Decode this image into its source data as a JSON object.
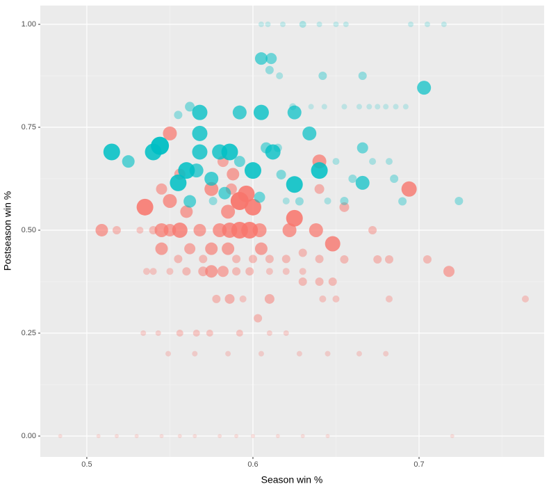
{
  "chart_data": {
    "type": "scatter",
    "x_label": "Season win %",
    "y_label": "Postseason win %",
    "xlim": [
      0.472,
      0.7753
    ],
    "ylim": [
      -0.0507,
      1.0456
    ],
    "xticks": [
      0.5,
      0.6,
      0.7
    ],
    "yticks": [
      {
        "value": 0,
        "label": "0.00"
      },
      {
        "value": 0.25,
        "label": "0.25"
      },
      {
        "value": 0.5,
        "label": "0.50"
      },
      {
        "value": 0.75,
        "label": "0.75"
      },
      {
        "value": 1,
        "label": "1.00"
      }
    ],
    "grid": true,
    "minor_grid": true,
    "background": "#ebebeb",
    "series": [
      {
        "color": "#f8766d",
        "x": [
          0.509,
          0.518,
          0.532,
          0.535,
          0.54,
          0.545,
          0.545,
          0.55,
          0.556,
          0.55,
          0.55,
          0.556,
          0.545,
          0.56,
          0.562,
          0.568,
          0.575,
          0.58,
          0.586,
          0.592,
          0.598,
          0.604,
          0.605,
          0.585,
          0.592,
          0.596,
          0.6,
          0.585,
          0.587,
          0.575,
          0.582,
          0.588,
          0.625,
          0.622,
          0.638,
          0.648,
          0.64,
          0.64,
          0.655,
          0.694,
          0.672,
          0.675,
          0.682,
          0.705,
          0.718,
          0.764,
          0.682,
          0.642,
          0.65,
          0.61,
          0.586,
          0.578,
          0.594,
          0.575,
          0.57,
          0.582,
          0.59,
          0.598,
          0.56,
          0.55,
          0.54,
          0.536,
          0.61,
          0.62,
          0.63,
          0.64,
          0.648,
          0.63,
          0.655,
          0.63,
          0.59,
          0.6,
          0.61,
          0.62,
          0.64,
          0.57,
          0.555,
          0.603,
          0.534,
          0.543,
          0.556,
          0.566,
          0.574,
          0.592,
          0.61,
          0.62,
          0.549,
          0.565,
          0.585,
          0.605,
          0.628,
          0.645,
          0.664,
          0.68,
          0.484,
          0.507,
          0.518,
          0.53,
          0.545,
          0.556,
          0.565,
          0.58,
          0.59,
          0.6,
          0.615,
          0.63,
          0.645,
          0.72
        ],
        "values": [
          0.5,
          0.5,
          0.5,
          0.556,
          0.5,
          0.5,
          0.455,
          0.5,
          0.5,
          0.571,
          0.735,
          0.636,
          0.6,
          0.545,
          0.455,
          0.5,
          0.455,
          0.5,
          0.5,
          0.5,
          0.5,
          0.5,
          0.455,
          0.455,
          0.571,
          0.588,
          0.556,
          0.545,
          0.6,
          0.6,
          0.667,
          0.636,
          0.529,
          0.5,
          0.5,
          0.467,
          0.667,
          0.6,
          0.556,
          0.6,
          0.5,
          0.429,
          0.429,
          0.429,
          0.4,
          0.333,
          0.333,
          0.333,
          0.333,
          0.333,
          0.333,
          0.333,
          0.333,
          0.4,
          0.4,
          0.4,
          0.4,
          0.4,
          0.4,
          0.4,
          0.4,
          0.4,
          0.4,
          0.4,
          0.4,
          0.375,
          0.375,
          0.375,
          0.429,
          0.445,
          0.43,
          0.43,
          0.43,
          0.43,
          0.43,
          0.43,
          0.43,
          0.286,
          0.25,
          0.25,
          0.25,
          0.25,
          0.25,
          0.25,
          0.25,
          0.25,
          0.2,
          0.2,
          0.2,
          0.2,
          0.2,
          0.2,
          0.2,
          0.2,
          0,
          0,
          0,
          0,
          0,
          0,
          0,
          0,
          0,
          0,
          0,
          0,
          0,
          0
        ],
        "sizes": [
          9,
          6,
          5,
          12,
          6,
          10,
          9,
          9,
          11,
          10,
          10,
          8,
          8,
          9,
          8,
          9,
          9,
          10,
          11,
          12,
          12,
          10,
          9,
          9,
          13,
          12,
          12,
          10,
          8,
          10,
          8,
          9,
          12,
          10,
          10,
          11,
          10,
          7,
          7,
          11,
          6,
          6,
          6,
          6,
          8,
          5,
          5,
          5,
          5,
          7,
          7,
          6,
          5,
          9,
          7,
          8,
          6,
          6,
          6,
          5,
          5,
          5,
          5,
          5,
          5,
          6,
          6,
          6,
          6,
          6,
          6,
          6,
          6,
          6,
          6,
          6,
          6,
          6,
          4,
          4,
          5,
          5,
          5,
          5,
          4,
          4,
          4,
          4,
          4,
          4,
          4,
          4,
          4,
          4,
          3,
          3,
          3,
          3,
          3,
          3,
          3,
          3,
          3,
          3,
          3,
          3,
          3,
          3
        ]
      },
      {
        "color": "#00bfc4",
        "x": [
          0.515,
          0.525,
          0.54,
          0.544,
          0.555,
          0.562,
          0.568,
          0.568,
          0.568,
          0.56,
          0.566,
          0.575,
          0.555,
          0.562,
          0.58,
          0.586,
          0.592,
          0.592,
          0.6,
          0.605,
          0.605,
          0.611,
          0.61,
          0.616,
          0.608,
          0.612,
          0.615,
          0.617,
          0.625,
          0.625,
          0.624,
          0.63,
          0.605,
          0.609,
          0.618,
          0.64,
          0.65,
          0.656,
          0.695,
          0.705,
          0.715,
          0.635,
          0.643,
          0.655,
          0.664,
          0.67,
          0.675,
          0.68,
          0.686,
          0.692,
          0.703,
          0.634,
          0.64,
          0.642,
          0.666,
          0.666,
          0.666,
          0.66,
          0.685,
          0.69,
          0.724,
          0.655,
          0.645,
          0.62,
          0.628,
          0.576,
          0.583,
          0.604,
          0.65,
          0.682,
          0.672
        ],
        "values": [
          0.69,
          0.667,
          0.69,
          0.705,
          0.78,
          0.8,
          0.786,
          0.735,
          0.69,
          0.645,
          0.645,
          0.625,
          0.615,
          0.57,
          0.69,
          0.69,
          0.667,
          0.786,
          0.645,
          0.786,
          0.917,
          0.917,
          0.889,
          0.875,
          0.7,
          0.69,
          0.7,
          0.635,
          0.611,
          0.786,
          0.8,
          1,
          1,
          1,
          1,
          1,
          1,
          1,
          1,
          1,
          1,
          0.8,
          0.8,
          0.8,
          0.8,
          0.8,
          0.8,
          0.8,
          0.8,
          0.8,
          0.846,
          0.735,
          0.645,
          0.875,
          0.875,
          0.7,
          0.615,
          0.625,
          0.625,
          0.57,
          0.571,
          0.571,
          0.571,
          0.571,
          0.57,
          0.571,
          0.59,
          0.58,
          0.667,
          0.667,
          0.667
        ],
        "sizes": [
          12,
          9,
          12,
          13,
          6,
          7,
          11,
          11,
          11,
          12,
          10,
          10,
          12,
          9,
          11,
          12,
          8,
          10,
          12,
          11,
          9,
          8,
          6,
          5,
          8,
          11,
          6,
          7,
          12,
          10,
          5,
          5,
          4,
          4,
          4,
          4,
          4,
          4,
          4,
          4,
          4,
          4,
          4,
          4,
          4,
          4,
          4,
          4,
          4,
          4,
          10,
          10,
          12,
          6,
          6,
          8,
          10,
          6,
          6,
          6,
          6,
          6,
          5,
          5,
          6,
          6,
          9,
          8,
          5,
          5,
          5
        ]
      }
    ]
  }
}
